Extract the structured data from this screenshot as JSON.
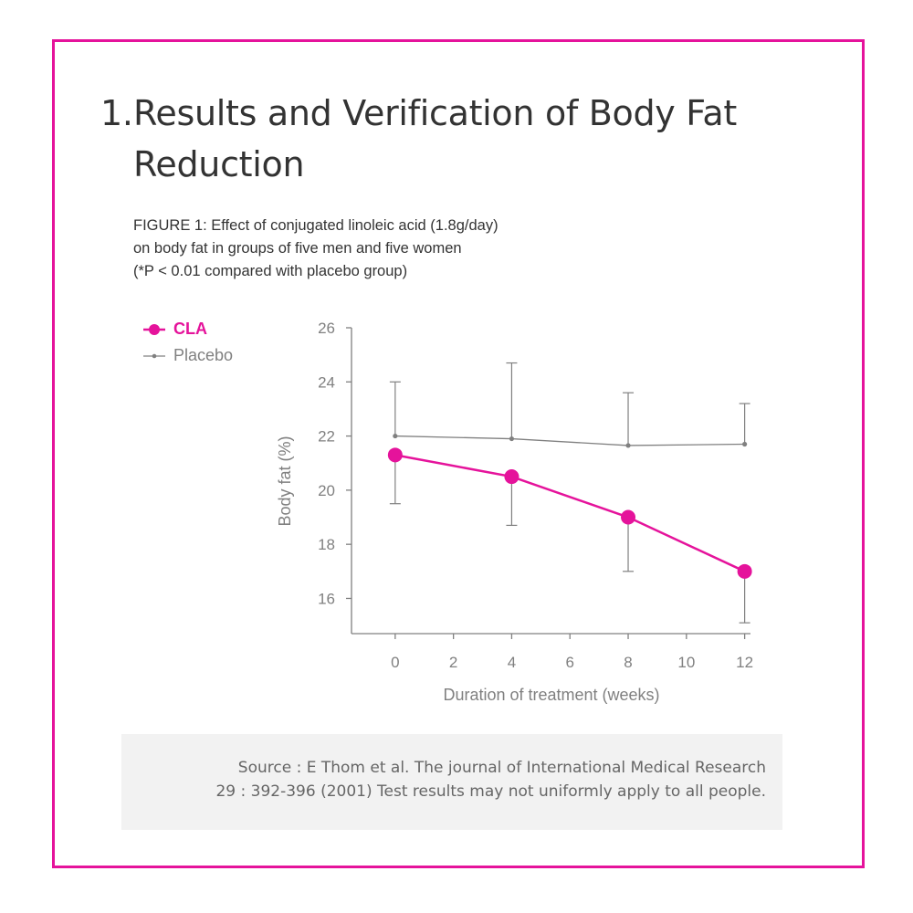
{
  "heading": {
    "number": "1.",
    "line1": "Results and Verification of Body Fat",
    "line2": "Reduction"
  },
  "figure_caption": {
    "line1": "FIGURE 1: Effect of conjugated linoleic acid (1.8g/day)",
    "line2": "on body fat in groups of five men and five women",
    "line3": "(*P < 0.01 compared with placebo group)"
  },
  "legend": {
    "cla": "CLA",
    "placebo": "Placebo"
  },
  "colors": {
    "frame": "#e5139b",
    "cla": "#e5139b",
    "placebo": "#808080",
    "axis": "#808080",
    "source_bg": "#f2f2f2"
  },
  "chart_data": {
    "type": "line",
    "xlabel": "Duration of treatment (weeks)",
    "ylabel": "Body fat (%)",
    "xlim": [
      -1.5,
      12.2
    ],
    "ylim": [
      14.7,
      26
    ],
    "xticks": [
      0,
      2,
      4,
      6,
      8,
      10,
      12
    ],
    "yticks": [
      16,
      18,
      20,
      22,
      24,
      26
    ],
    "legend_position": "top-left",
    "grid": false,
    "series": [
      {
        "name": "CLA",
        "color": "#e5139b",
        "x": [
          0,
          4,
          8,
          12
        ],
        "y": [
          21.3,
          20.5,
          19.0,
          17.0
        ],
        "error_low": [
          19.5,
          18.7,
          17.0,
          15.1
        ],
        "error_high": [
          21.3,
          20.5,
          19.0,
          17.0
        ]
      },
      {
        "name": "Placebo",
        "color": "#808080",
        "x": [
          0,
          4,
          8,
          12
        ],
        "y": [
          22.0,
          21.9,
          21.65,
          21.7
        ],
        "error_low": [
          22.0,
          21.9,
          21.65,
          21.7
        ],
        "error_high": [
          24.0,
          24.7,
          23.6,
          23.2
        ]
      }
    ]
  },
  "source": {
    "line1": "Source : E Thom et al. The journal of International Medical Research",
    "line2": "29 : 392-396 (2001) Test results may not uniformly apply to all people."
  }
}
